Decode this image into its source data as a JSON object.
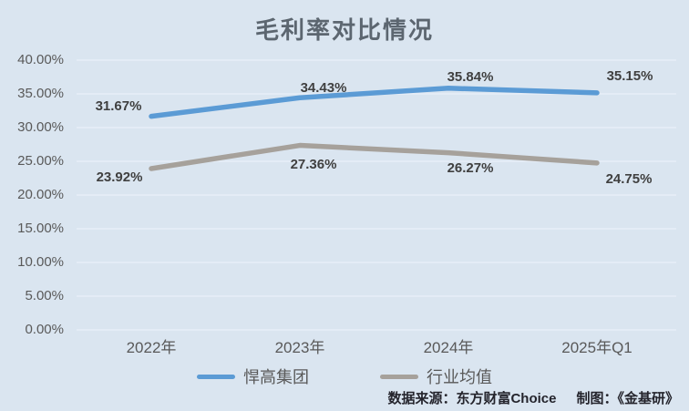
{
  "chart": {
    "title": "毛利率对比情况"
  },
  "chart_data": {
    "type": "line",
    "title": "毛利率对比情况",
    "categories": [
      "2022年",
      "2023年",
      "2024年",
      "2025年Q1"
    ],
    "series": [
      {
        "name": "悍高集团",
        "values": [
          31.67,
          34.43,
          35.84,
          35.15
        ],
        "labels": [
          "31.67%",
          "34.43%",
          "35.84%",
          "35.15%"
        ],
        "color": "#5B9BD5"
      },
      {
        "name": "行业均值",
        "values": [
          23.92,
          27.36,
          26.27,
          24.75
        ],
        "labels": [
          "23.92%",
          "27.36%",
          "26.27%",
          "24.75%"
        ],
        "color": "#A6A19B"
      }
    ],
    "ylim": [
      0,
      40
    ],
    "y_ticks": [
      40,
      35,
      30,
      25,
      20,
      15,
      10,
      5,
      0
    ],
    "y_tick_labels": [
      "40.00%",
      "35.00%",
      "30.00%",
      "25.00%",
      "20.00%",
      "15.00%",
      "10.00%",
      "5.00%",
      "0.00%"
    ],
    "grid": true,
    "legend_position": "bottom",
    "background_color": "#dae5f0",
    "gridline_color": "#e7eef7"
  },
  "footer": {
    "source": "数据来源：东方财富Choice",
    "credit": "制图：《金基研》"
  }
}
